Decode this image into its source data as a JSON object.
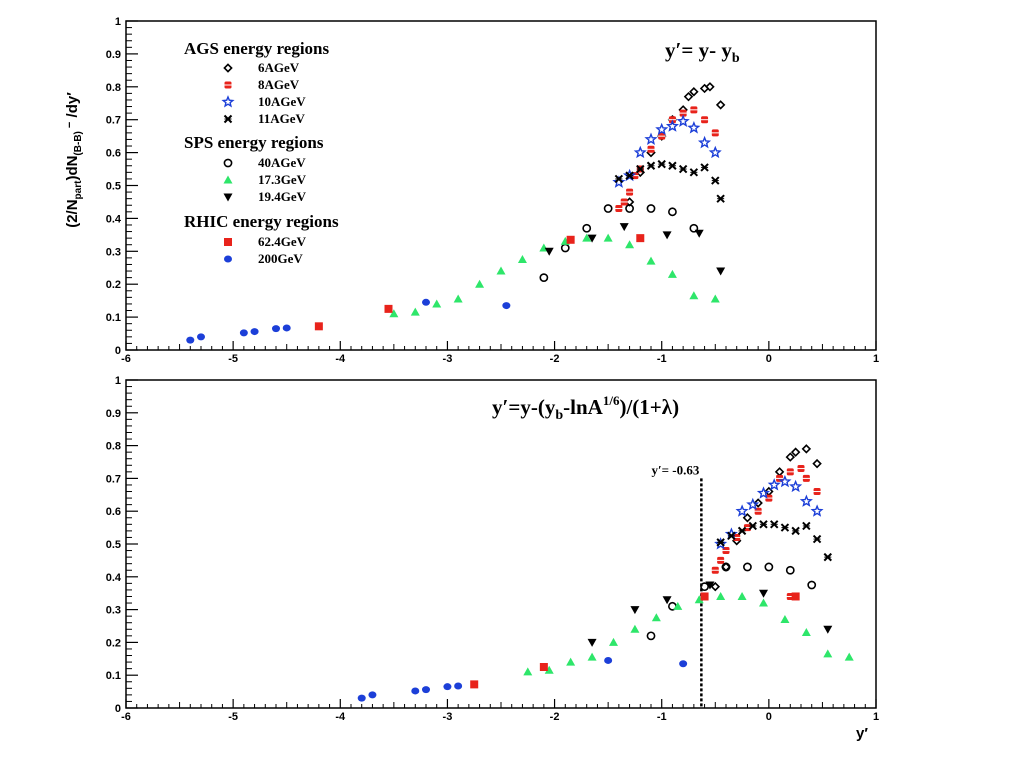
{
  "figure": {
    "ylabel": "(2/Npart)dN(B-B) /dy′",
    "xlabel": "y′"
  },
  "legend": {
    "groups": [
      {
        "header": "AGS energy regions",
        "items": [
          {
            "key": "ags6",
            "label": "6AGeV"
          },
          {
            "key": "ags8",
            "label": "8AGeV"
          },
          {
            "key": "ags10",
            "label": "10AGeV"
          },
          {
            "key": "ags11",
            "label": "11AGeV"
          }
        ]
      },
      {
        "header": "SPS energy regions",
        "items": [
          {
            "key": "sps40",
            "label": "40AGeV"
          },
          {
            "key": "sps173",
            "label": "17.3GeV"
          },
          {
            "key": "sps194",
            "label": "19.4GeV"
          }
        ]
      },
      {
        "header": "RHIC energy regions",
        "items": [
          {
            "key": "rhic624",
            "label": "62.4GeV"
          },
          {
            "key": "rhic200",
            "label": "200GeV"
          }
        ]
      }
    ]
  },
  "markers": {
    "ags6": {
      "shape": "diamond-open",
      "color": "#000000"
    },
    "ags8": {
      "shape": "square-cross",
      "color": "#e8231b"
    },
    "ags10": {
      "shape": "star-open",
      "color": "#1c3fd8"
    },
    "ags11": {
      "shape": "x-cross",
      "color": "#000000"
    },
    "sps40": {
      "shape": "circle-open",
      "color": "#000000"
    },
    "sps173": {
      "shape": "triangle-up",
      "color": "#2ee66a"
    },
    "sps194": {
      "shape": "triangle-down",
      "color": "#000000"
    },
    "rhic624": {
      "shape": "square",
      "color": "#e8231b"
    },
    "rhic200": {
      "shape": "circle",
      "color": "#1c3fd8"
    }
  },
  "chart_data": [
    {
      "type": "scatter",
      "formula": {
        "main": "y′= y- y",
        "sub": "b"
      },
      "xlim": [
        -6,
        1
      ],
      "ylim": [
        0,
        1
      ],
      "xticks": [
        "-6",
        "-5",
        "-4",
        "-3",
        "-2",
        "-1",
        "0",
        "1"
      ],
      "yticks": [
        "0",
        "0.1",
        "0.2",
        "0.3",
        "0.4",
        "0.5",
        "0.6",
        "0.7",
        "0.8",
        "0.9",
        "1"
      ],
      "series": [
        {
          "key": "ags6",
          "points": [
            [
              -1.3,
              0.45
            ],
            [
              -1.2,
              0.54
            ],
            [
              -1.1,
              0.6
            ],
            [
              -1.0,
              0.65
            ],
            [
              -0.9,
              0.7
            ],
            [
              -0.8,
              0.73
            ],
            [
              -0.75,
              0.77
            ],
            [
              -0.7,
              0.785
            ],
            [
              -0.6,
              0.795
            ],
            [
              -0.55,
              0.8
            ],
            [
              -0.45,
              0.745
            ]
          ]
        },
        {
          "key": "ags8",
          "points": [
            [
              -1.4,
              0.43
            ],
            [
              -1.35,
              0.45
            ],
            [
              -1.3,
              0.48
            ],
            [
              -1.25,
              0.53
            ],
            [
              -1.2,
              0.55
            ],
            [
              -1.1,
              0.61
            ],
            [
              -1.0,
              0.65
            ],
            [
              -0.9,
              0.7
            ],
            [
              -0.8,
              0.72
            ],
            [
              -0.7,
              0.73
            ],
            [
              -0.6,
              0.7
            ],
            [
              -0.5,
              0.66
            ],
            [
              -1.2,
              0.34
            ]
          ]
        },
        {
          "key": "ags10",
          "points": [
            [
              -1.4,
              0.51
            ],
            [
              -1.3,
              0.53
            ],
            [
              -1.2,
              0.6
            ],
            [
              -1.1,
              0.64
            ],
            [
              -1.0,
              0.67
            ],
            [
              -0.9,
              0.68
            ],
            [
              -0.8,
              0.695
            ],
            [
              -0.7,
              0.675
            ],
            [
              -0.6,
              0.63
            ],
            [
              -0.5,
              0.6
            ]
          ]
        },
        {
          "key": "ags11",
          "points": [
            [
              -1.4,
              0.52
            ],
            [
              -1.3,
              0.53
            ],
            [
              -1.2,
              0.55
            ],
            [
              -1.1,
              0.56
            ],
            [
              -1.0,
              0.565
            ],
            [
              -0.9,
              0.56
            ],
            [
              -0.8,
              0.55
            ],
            [
              -0.7,
              0.54
            ],
            [
              -0.6,
              0.555
            ],
            [
              -0.5,
              0.515
            ],
            [
              -0.45,
              0.46
            ]
          ]
        },
        {
          "key": "sps40",
          "points": [
            [
              -2.1,
              0.22
            ],
            [
              -1.9,
              0.31
            ],
            [
              -1.7,
              0.37
            ],
            [
              -1.5,
              0.43
            ],
            [
              -1.3,
              0.43
            ],
            [
              -1.1,
              0.43
            ],
            [
              -0.9,
              0.42
            ],
            [
              -0.7,
              0.37
            ]
          ]
        },
        {
          "key": "sps173",
          "points": [
            [
              -3.5,
              0.11
            ],
            [
              -3.3,
              0.115
            ],
            [
              -3.1,
              0.14
            ],
            [
              -2.9,
              0.155
            ],
            [
              -2.7,
              0.2
            ],
            [
              -2.5,
              0.24
            ],
            [
              -2.3,
              0.275
            ],
            [
              -2.1,
              0.31
            ],
            [
              -1.9,
              0.33
            ],
            [
              -1.7,
              0.34
            ],
            [
              -1.5,
              0.34
            ],
            [
              -1.3,
              0.32
            ],
            [
              -1.1,
              0.27
            ],
            [
              -0.9,
              0.23
            ],
            [
              -0.7,
              0.165
            ],
            [
              -0.5,
              0.155
            ]
          ]
        },
        {
          "key": "sps194",
          "points": [
            [
              -2.05,
              0.3
            ],
            [
              -1.65,
              0.34
            ],
            [
              -1.35,
              0.375
            ],
            [
              -0.95,
              0.35
            ],
            [
              -0.65,
              0.355
            ],
            [
              -0.45,
              0.24
            ]
          ]
        },
        {
          "key": "rhic624",
          "points": [
            [
              -4.2,
              0.072
            ],
            [
              -3.55,
              0.125
            ],
            [
              -1.85,
              0.335
            ],
            [
              -1.2,
              0.34
            ]
          ]
        },
        {
          "key": "rhic200",
          "points": [
            [
              -5.4,
              0.03
            ],
            [
              -5.3,
              0.04
            ],
            [
              -4.9,
              0.052
            ],
            [
              -4.8,
              0.056
            ],
            [
              -4.6,
              0.065
            ],
            [
              -4.5,
              0.067
            ],
            [
              -3.2,
              0.145
            ],
            [
              -2.45,
              0.135
            ]
          ]
        }
      ]
    },
    {
      "type": "scatter",
      "formula": {
        "main": "y′=y-(y",
        "sub": "b",
        "mid": "-lnA",
        "sup": "1/6",
        "end": ")/(1+λ)"
      },
      "annotation": {
        "text": "y′= -0.63",
        "x": -0.63
      },
      "xlim": [
        -6,
        1
      ],
      "ylim": [
        0,
        1
      ],
      "xticks": [
        "-6",
        "-5",
        "-4",
        "-3",
        "-2",
        "-1",
        "0",
        "1"
      ],
      "yticks": [
        "0",
        "0.1",
        "0.2",
        "0.3",
        "0.4",
        "0.5",
        "0.6",
        "0.7",
        "0.8",
        "0.9",
        "1"
      ],
      "series": [
        {
          "key": "ags6",
          "points": [
            [
              -0.5,
              0.37
            ],
            [
              -0.4,
              0.43
            ],
            [
              -0.3,
              0.51
            ],
            [
              -0.2,
              0.58
            ],
            [
              -0.1,
              0.625
            ],
            [
              0.0,
              0.66
            ],
            [
              0.1,
              0.72
            ],
            [
              0.2,
              0.765
            ],
            [
              0.25,
              0.78
            ],
            [
              0.35,
              0.79
            ],
            [
              0.45,
              0.745
            ]
          ]
        },
        {
          "key": "ags8",
          "points": [
            [
              -0.5,
              0.42
            ],
            [
              -0.45,
              0.45
            ],
            [
              -0.4,
              0.48
            ],
            [
              -0.3,
              0.52
            ],
            [
              -0.2,
              0.55
            ],
            [
              -0.1,
              0.6
            ],
            [
              0.0,
              0.64
            ],
            [
              0.1,
              0.7
            ],
            [
              0.2,
              0.72
            ],
            [
              0.3,
              0.73
            ],
            [
              0.35,
              0.7
            ],
            [
              0.45,
              0.66
            ],
            [
              0.2,
              0.34
            ]
          ]
        },
        {
          "key": "ags10",
          "points": [
            [
              -0.45,
              0.5
            ],
            [
              -0.35,
              0.53
            ],
            [
              -0.25,
              0.6
            ],
            [
              -0.15,
              0.62
            ],
            [
              -0.05,
              0.655
            ],
            [
              0.05,
              0.68
            ],
            [
              0.15,
              0.69
            ],
            [
              0.25,
              0.675
            ],
            [
              0.35,
              0.63
            ],
            [
              0.45,
              0.6
            ]
          ]
        },
        {
          "key": "ags11",
          "points": [
            [
              -0.45,
              0.505
            ],
            [
              -0.35,
              0.525
            ],
            [
              -0.25,
              0.54
            ],
            [
              -0.15,
              0.555
            ],
            [
              -0.05,
              0.56
            ],
            [
              0.05,
              0.56
            ],
            [
              0.15,
              0.55
            ],
            [
              0.25,
              0.54
            ],
            [
              0.35,
              0.555
            ],
            [
              0.45,
              0.515
            ],
            [
              0.55,
              0.46
            ]
          ]
        },
        {
          "key": "sps40",
          "points": [
            [
              -1.1,
              0.22
            ],
            [
              -0.9,
              0.31
            ],
            [
              -0.6,
              0.37
            ],
            [
              -0.4,
              0.43
            ],
            [
              -0.2,
              0.43
            ],
            [
              0.0,
              0.43
            ],
            [
              0.2,
              0.42
            ],
            [
              0.4,
              0.375
            ]
          ]
        },
        {
          "key": "sps173",
          "points": [
            [
              -2.25,
              0.11
            ],
            [
              -2.05,
              0.115
            ],
            [
              -1.85,
              0.14
            ],
            [
              -1.65,
              0.155
            ],
            [
              -1.45,
              0.2
            ],
            [
              -1.25,
              0.24
            ],
            [
              -1.05,
              0.275
            ],
            [
              -0.85,
              0.31
            ],
            [
              -0.65,
              0.33
            ],
            [
              -0.45,
              0.34
            ],
            [
              -0.25,
              0.34
            ],
            [
              -0.05,
              0.32
            ],
            [
              0.15,
              0.27
            ],
            [
              0.35,
              0.23
            ],
            [
              0.55,
              0.165
            ],
            [
              0.75,
              0.155
            ]
          ]
        },
        {
          "key": "sps194",
          "points": [
            [
              -1.65,
              0.2
            ],
            [
              -1.25,
              0.3
            ],
            [
              -0.95,
              0.33
            ],
            [
              -0.55,
              0.375
            ],
            [
              -0.05,
              0.35
            ],
            [
              0.55,
              0.24
            ]
          ]
        },
        {
          "key": "rhic624",
          "points": [
            [
              -2.75,
              0.072
            ],
            [
              -2.1,
              0.125
            ],
            [
              -0.6,
              0.34
            ],
            [
              0.25,
              0.34
            ]
          ]
        },
        {
          "key": "rhic200",
          "points": [
            [
              -3.8,
              0.03
            ],
            [
              -3.7,
              0.04
            ],
            [
              -3.3,
              0.052
            ],
            [
              -3.2,
              0.056
            ],
            [
              -3.0,
              0.065
            ],
            [
              -2.9,
              0.067
            ],
            [
              -1.5,
              0.145
            ],
            [
              -0.8,
              0.135
            ]
          ]
        }
      ]
    }
  ]
}
